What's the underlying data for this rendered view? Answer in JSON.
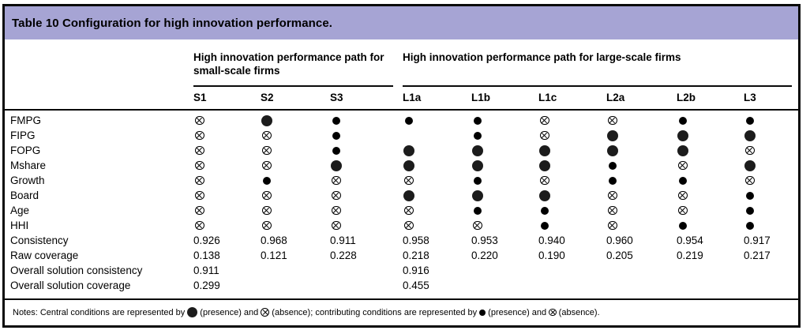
{
  "table": {
    "title": "Table 10 Configuration for high innovation performance.",
    "col_groups": [
      {
        "label": "High innovation performance path for small-scale firms"
      },
      {
        "label": "High innovation performance path for large-scale firms"
      }
    ],
    "columns": [
      "S1",
      "S2",
      "S3",
      "L1a",
      "L1b",
      "L1c",
      "L2a",
      "L2b",
      "L3"
    ],
    "symbols": {
      "CP": "central-presence",
      "cp": "contributing-presence",
      "ax": "absence"
    },
    "rows": [
      {
        "label": "FMPG",
        "cells": [
          "ax",
          "CP",
          "cp",
          "cp",
          "cp",
          "ax",
          "ax",
          "cp",
          "cp"
        ]
      },
      {
        "label": "FIPG",
        "cells": [
          "ax",
          "ax",
          "cp",
          "",
          "cp",
          "ax",
          "CP",
          "CP",
          "CP"
        ]
      },
      {
        "label": "FOPG",
        "cells": [
          "ax",
          "ax",
          "cp",
          "CP",
          "CP",
          "CP",
          "CP",
          "CP",
          "ax"
        ]
      },
      {
        "label": "Mshare",
        "cells": [
          "ax",
          "ax",
          "CP",
          "CP",
          "CP",
          "CP",
          "cp",
          "ax",
          "CP"
        ]
      },
      {
        "label": "Growth",
        "cells": [
          "ax",
          "cp",
          "ax",
          "ax",
          "cp",
          "ax",
          "cp",
          "cp",
          "ax"
        ]
      },
      {
        "label": "Board",
        "cells": [
          "ax",
          "ax",
          "ax",
          "CP",
          "CP",
          "CP",
          "ax",
          "ax",
          "cp"
        ]
      },
      {
        "label": "Age",
        "cells": [
          "ax",
          "ax",
          "ax",
          "ax",
          "cp",
          "cp",
          "ax",
          "ax",
          "cp"
        ]
      },
      {
        "label": "HHI",
        "cells": [
          "ax",
          "ax",
          "ax",
          "ax",
          "ax",
          "cp",
          "ax",
          "cp",
          "cp"
        ]
      },
      {
        "label": "Consistency",
        "cells": [
          "0.926",
          "0.968",
          "0.911",
          "0.958",
          "0.953",
          "0.940",
          "0.960",
          "0.954",
          "0.917"
        ]
      },
      {
        "label": "Raw coverage",
        "cells": [
          "0.138",
          "0.121",
          "0.228",
          "0.218",
          "0.220",
          "0.190",
          "0.205",
          "0.219",
          "0.217"
        ]
      },
      {
        "label": "Overall solution consistency",
        "cells": [
          "0.911",
          "",
          "",
          "0.916",
          "",
          "",
          "",
          "",
          ""
        ]
      },
      {
        "label": "Overall solution coverage",
        "cells": [
          "0.299",
          "",
          "",
          "0.455",
          "",
          "",
          "",
          "",
          ""
        ]
      }
    ],
    "notes": {
      "parts": [
        "Notes: Central conditions are represented by",
        "(presence) and",
        "(absence); contributing conditions are represented by",
        "(presence) and",
        "(absence)."
      ]
    },
    "colors": {
      "header_bg": "#a6a4d4",
      "text": "#000000"
    }
  }
}
